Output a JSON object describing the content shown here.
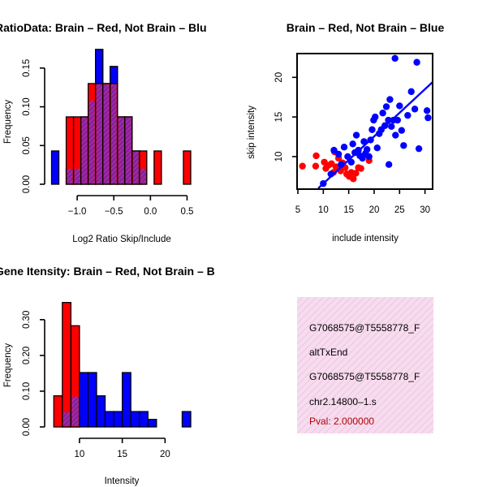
{
  "colors": {
    "brain": "#ff0000",
    "not_brain": "#0000ff",
    "overlap": "#992299",
    "info_bg": "#f7dcef"
  },
  "chart_data": [
    {
      "type": "bar",
      "id": "ratio_hist",
      "title": "RatioData: Brain – Red, Not Brain – Blu",
      "xlabel": "Log2 Ratio Skip/Include",
      "ylabel": "Frequency",
      "xlim": [
        -1.4,
        0.65
      ],
      "ylim": [
        0,
        0.175
      ],
      "xticks": [
        -1.0,
        -0.5,
        0.0,
        0.5
      ],
      "xtick_labels": [
        "−1.0",
        "−0.5",
        "0.0",
        "0.5"
      ],
      "yticks": [
        0.0,
        0.05,
        0.1,
        0.15
      ],
      "ytick_labels": [
        "0.00",
        "0.05",
        "0.10",
        "0.15"
      ],
      "bin_width": 0.1,
      "series": [
        {
          "name": "Not Brain",
          "bin_starts": [
            -1.35,
            -1.15,
            -1.05,
            -0.95,
            -0.85,
            -0.75,
            -0.65,
            -0.55,
            -0.45,
            -0.35,
            -0.25,
            -0.15
          ],
          "values": [
            0.043,
            0.021,
            0.021,
            0.087,
            0.109,
            0.174,
            0.13,
            0.152,
            0.087,
            0.087,
            0.043,
            0.021
          ]
        },
        {
          "name": "Brain",
          "bin_starts": [
            -1.15,
            -1.05,
            -0.95,
            -0.85,
            -0.75,
            -0.65,
            -0.55,
            -0.45,
            -0.35,
            -0.25,
            -0.15,
            0.05,
            0.45
          ],
          "values": [
            0.087,
            0.087,
            0.087,
            0.13,
            0.13,
            0.13,
            0.13,
            0.087,
            0.087,
            0.043,
            0.043,
            0.043,
            0.043
          ]
        }
      ]
    },
    {
      "type": "scatter",
      "id": "intensity_scatter",
      "title": "Brain – Red, Not Brain – Blue",
      "xlabel": "include intensity",
      "ylabel": "skip intensity",
      "xlim": [
        5,
        31.5
      ],
      "ylim": [
        6.0,
        23.0
      ],
      "xticks": [
        5,
        10,
        15,
        20,
        25,
        30
      ],
      "yticks": [
        10,
        15,
        20
      ],
      "fit_line": {
        "x0": 9,
        "y0": 6.0,
        "x1": 31.5,
        "y1": 19.4
      },
      "series": [
        {
          "name": "Brain",
          "points": [
            [
              5.9,
              8.8
            ],
            [
              8.5,
              8.8
            ],
            [
              8.6,
              10.1
            ],
            [
              10.2,
              9.3
            ],
            [
              10.5,
              8.5
            ],
            [
              11.0,
              8.9
            ],
            [
              11.6,
              9.1
            ],
            [
              12.0,
              8.0
            ],
            [
              12.2,
              10.6
            ],
            [
              12.5,
              8.7
            ],
            [
              13.0,
              9.8
            ],
            [
              13.4,
              8.2
            ],
            [
              13.8,
              9.2
            ],
            [
              14.3,
              8.6
            ],
            [
              14.6,
              7.8
            ],
            [
              15.1,
              7.5
            ],
            [
              15.5,
              8.0
            ],
            [
              15.9,
              7.2
            ],
            [
              16.4,
              7.9
            ],
            [
              16.9,
              8.6
            ],
            [
              17.4,
              8.5
            ],
            [
              19.0,
              9.5
            ]
          ]
        },
        {
          "name": "Not Brain",
          "points": [
            [
              10.0,
              6.6
            ],
            [
              11.5,
              7.8
            ],
            [
              12.1,
              10.8
            ],
            [
              13.0,
              10.3
            ],
            [
              13.5,
              9.0
            ],
            [
              14.1,
              11.2
            ],
            [
              14.8,
              10.0
            ],
            [
              15.5,
              9.3
            ],
            [
              15.8,
              11.6
            ],
            [
              16.2,
              10.5
            ],
            [
              16.5,
              12.7
            ],
            [
              16.9,
              10.8
            ],
            [
              17.2,
              10.1
            ],
            [
              17.7,
              9.8
            ],
            [
              18.0,
              11.9
            ],
            [
              18.3,
              10.4
            ],
            [
              18.6,
              10.9
            ],
            [
              19.0,
              10.0
            ],
            [
              19.3,
              12.1
            ],
            [
              19.6,
              13.4
            ],
            [
              19.9,
              14.6
            ],
            [
              20.2,
              15.0
            ],
            [
              20.6,
              11.1
            ],
            [
              21.0,
              12.9
            ],
            [
              21.4,
              13.4
            ],
            [
              21.7,
              15.5
            ],
            [
              22.1,
              13.9
            ],
            [
              22.4,
              16.3
            ],
            [
              22.8,
              14.6
            ],
            [
              22.9,
              9.0
            ],
            [
              23.1,
              17.2
            ],
            [
              23.4,
              13.8
            ],
            [
              23.8,
              14.6
            ],
            [
              24.1,
              22.4
            ],
            [
              24.2,
              12.7
            ],
            [
              24.6,
              14.6
            ],
            [
              25.0,
              16.4
            ],
            [
              25.4,
              13.3
            ],
            [
              25.8,
              11.4
            ],
            [
              26.6,
              15.2
            ],
            [
              27.3,
              18.2
            ],
            [
              28.0,
              16.0
            ],
            [
              28.4,
              21.9
            ],
            [
              28.8,
              11.0
            ],
            [
              30.4,
              15.8
            ],
            [
              30.6,
              14.9
            ]
          ]
        }
      ]
    },
    {
      "type": "bar",
      "id": "intensity_hist",
      "title": "Gene Itensity: Brain – Red, Not Brain – B",
      "xlabel": "Intensity",
      "ylabel": "Frequency",
      "xlim": [
        6.5,
        23.0
      ],
      "ylim": [
        0,
        0.37
      ],
      "xticks": [
        10,
        15,
        20
      ],
      "yticks": [
        0.0,
        0.1,
        0.2,
        0.3
      ],
      "ytick_labels": [
        "0.00",
        "0.10",
        "0.20",
        "0.30"
      ],
      "bin_width": 1,
      "series": [
        {
          "name": "Not Brain",
          "bin_starts": [
            8,
            9,
            10,
            11,
            12,
            13,
            14,
            15,
            16,
            17,
            18,
            22
          ],
          "values": [
            0.043,
            0.087,
            0.152,
            0.152,
            0.087,
            0.043,
            0.043,
            0.152,
            0.043,
            0.043,
            0.021,
            0.043
          ]
        },
        {
          "name": "Brain",
          "bin_starts": [
            7,
            8,
            9
          ],
          "values": [
            0.087,
            0.348,
            0.283
          ]
        }
      ]
    }
  ],
  "info_panel": {
    "lines": [
      "G7068575@T5558778_F",
      "altTxEnd",
      "G7068575@T5558778_F",
      "chr2.14800–1.s"
    ],
    "pval": "Pval: 2.000000"
  }
}
